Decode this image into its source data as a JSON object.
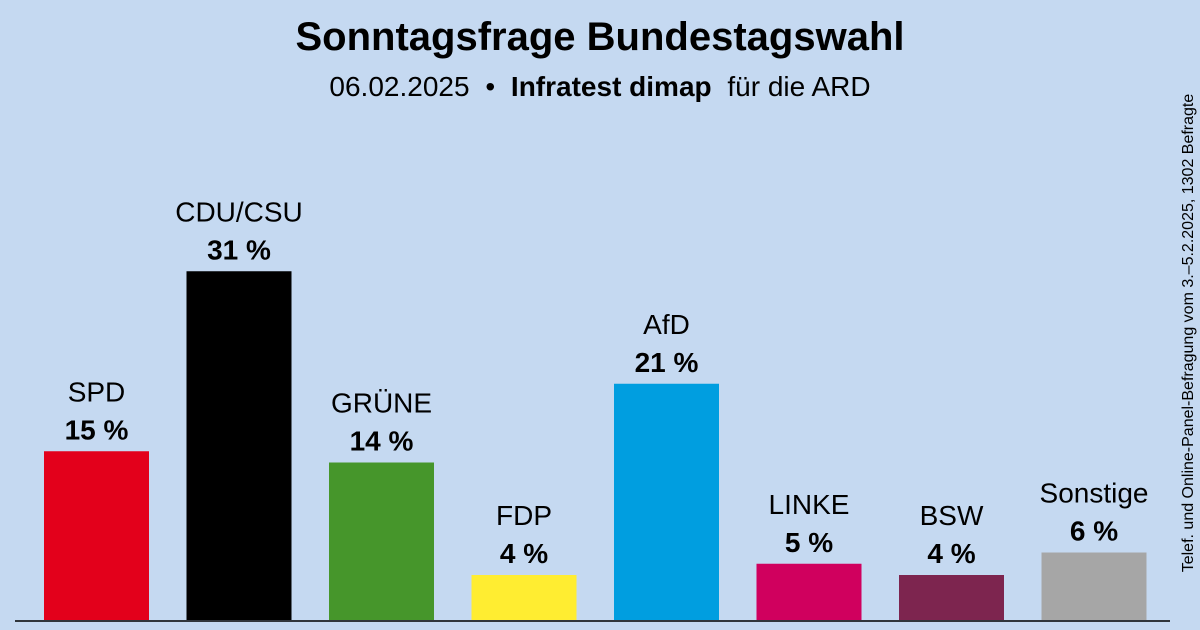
{
  "chart_data": {
    "type": "bar",
    "title": "Sonntagsfrage Bundestagswahl",
    "subtitle": {
      "date": "06.02.2025",
      "separator": "•",
      "institute": "Infratest dimap",
      "suffix": "für die ARD"
    },
    "side_note": "Telef. und Online-Panel-Befragung vom 3.–5.2.2025, 1302 Befragte",
    "unit": "%",
    "categories": [
      "SPD",
      "CDU/CSU",
      "GRÜNE",
      "FDP",
      "AfD",
      "LINKE",
      "BSW",
      "Sonstige"
    ],
    "values": [
      15,
      31,
      14,
      4,
      21,
      5,
      4,
      6
    ],
    "value_labels": [
      "15 %",
      "31 %",
      "14 %",
      "4 %",
      "21 %",
      "5 %",
      "4 %",
      "6 %"
    ],
    "colors": [
      "#e3001b",
      "#000000",
      "#46962b",
      "#ffed31",
      "#009ee0",
      "#d0005e",
      "#7d254f",
      "#a6a6a6"
    ],
    "ylim": [
      0,
      31
    ],
    "background": "#c5d9f1",
    "grid": false,
    "legend": "none"
  }
}
